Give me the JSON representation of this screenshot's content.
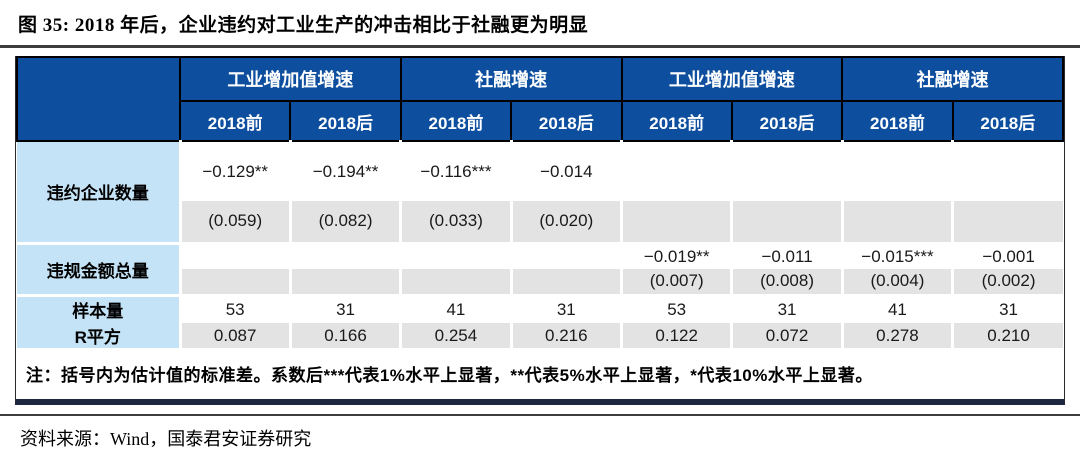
{
  "title": "图 35:  2018 年后，企业违约对工业生产的冲击相比于社融更为明显",
  "table": {
    "col_groups": [
      "工业增加值增速",
      "社融增速",
      "工业增加值增速",
      "社融增速"
    ],
    "sub_headers": [
      "2018前",
      "2018后",
      "2018前",
      "2018后",
      "2018前",
      "2018后",
      "2018前",
      "2018后"
    ],
    "rows": {
      "defaults_count": {
        "label": "违约企业数量",
        "coef": [
          "−0.129**",
          "−0.194**",
          "−0.116***",
          "−0.014",
          "",
          "",
          "",
          ""
        ],
        "se": [
          "(0.059)",
          "(0.082)",
          "(0.033)",
          "(0.020)",
          "",
          "",
          "",
          ""
        ]
      },
      "amount_total": {
        "label": "违规金额总量",
        "coef": [
          "",
          "",
          "",
          "",
          "−0.019**",
          "−0.011",
          "−0.015***",
          "−0.001"
        ],
        "se": [
          "",
          "",
          "",
          "",
          "(0.007)",
          "(0.008)",
          "(0.004)",
          "(0.002)"
        ]
      },
      "sample_size": {
        "label": "样本量",
        "values": [
          "53",
          "31",
          "41",
          "31",
          "53",
          "31",
          "41",
          "31"
        ]
      },
      "r_squared": {
        "label": "R平方",
        "values": [
          "0.087",
          "0.166",
          "0.254",
          "0.216",
          "0.122",
          "0.072",
          "0.278",
          "0.210"
        ]
      }
    },
    "note": "注：括号内为估计值的标准差。系数后***代表1%水平上显著，**代表5%水平上显著，*代表10%水平上显著。"
  },
  "source": "资料来源：Wind，国泰君安证券研究",
  "colors": {
    "header_blue": "#0d4f9e",
    "label_light_blue": "#c5e3f6",
    "row_gray": "#e3e3e3",
    "bottom_bar_navy": "#1d2740"
  }
}
